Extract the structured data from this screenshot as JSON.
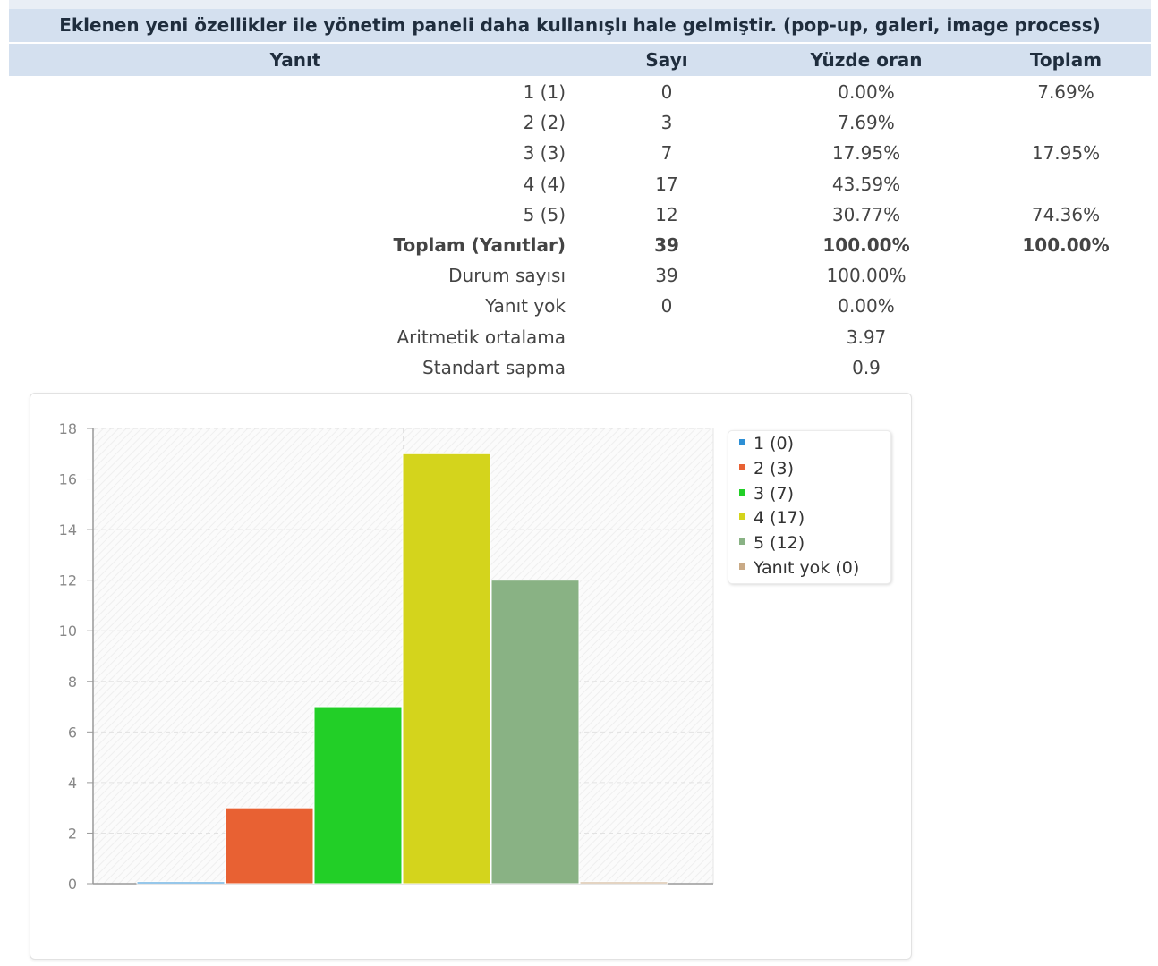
{
  "question": {
    "title": "Eklenen yeni özellikler ile yönetim paneli daha kullanışlı hale gelmiştir. (pop-up, galeri, image process)"
  },
  "table": {
    "headers": [
      "Yanıt",
      "Sayı",
      "Yüzde oran",
      "Toplam"
    ],
    "rows": [
      {
        "label": "1 (1)",
        "count": "0",
        "pct": "0.00%",
        "total": "7.69%",
        "bold": false
      },
      {
        "label": "2 (2)",
        "count": "3",
        "pct": "7.69%",
        "total": "",
        "bold": false
      },
      {
        "label": "3 (3)",
        "count": "7",
        "pct": "17.95%",
        "total": "17.95%",
        "bold": false
      },
      {
        "label": "4 (4)",
        "count": "17",
        "pct": "43.59%",
        "total": "",
        "bold": false
      },
      {
        "label": "5 (5)",
        "count": "12",
        "pct": "30.77%",
        "total": "74.36%",
        "bold": false
      },
      {
        "label": "Toplam (Yanıtlar)",
        "count": "39",
        "pct": "100.00%",
        "total": "100.00%",
        "bold": true
      },
      {
        "label": "Durum sayısı",
        "count": "39",
        "pct": "100.00%",
        "total": "",
        "bold": false
      },
      {
        "label": "Yanıt yok",
        "count": "0",
        "pct": "0.00%",
        "total": "",
        "bold": false
      },
      {
        "label": "Aritmetik ortalama",
        "count": "",
        "pct": "3.97",
        "total": "",
        "bold": false
      },
      {
        "label": "Standart sapma",
        "count": "",
        "pct": "0.9",
        "total": "",
        "bold": false
      }
    ]
  },
  "chart_data": {
    "type": "bar",
    "categories": [
      "1 (0)",
      "2 (3)",
      "3 (7)",
      "4 (17)",
      "5 (12)",
      "Yanıt yok (0)"
    ],
    "values": [
      0,
      3,
      7,
      17,
      12,
      0
    ],
    "colors": [
      "#2d8fd5",
      "#e86133",
      "#22cf27",
      "#d4d41c",
      "#89b284",
      "#c9aa86"
    ],
    "ylim": [
      0,
      18
    ],
    "yticks": [
      0,
      2,
      4,
      6,
      8,
      10,
      12,
      14,
      16,
      18
    ],
    "title": "",
    "xlabel": "",
    "ylabel": "",
    "legend_position": "top-right",
    "grid": true
  }
}
